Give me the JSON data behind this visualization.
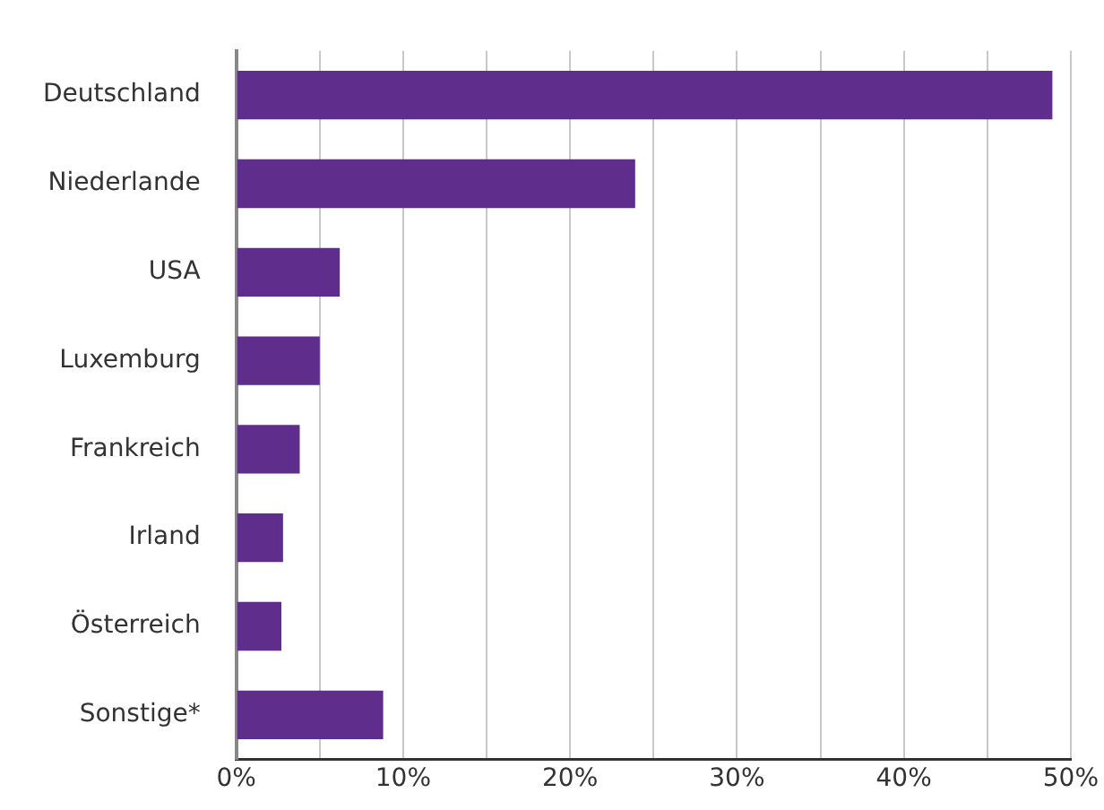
{
  "chart_data": {
    "type": "bar",
    "orientation": "horizontal",
    "categories": [
      "Deutschland",
      "Niederlande",
      "USA",
      "Luxemburg",
      "Frankreich",
      "Irland",
      "Österreich",
      "Sonstige*"
    ],
    "values": [
      48.9,
      23.9,
      6.2,
      5.0,
      3.8,
      2.8,
      2.7,
      8.8
    ],
    "color": "#5f2d8c",
    "xlim": [
      0,
      50
    ],
    "xticks": [
      {
        "value": 0,
        "label": "0%"
      },
      {
        "value": 5,
        "label": null
      },
      {
        "value": 10,
        "label": "10%"
      },
      {
        "value": 15,
        "label": null
      },
      {
        "value": 20,
        "label": "20%"
      },
      {
        "value": 25,
        "label": null
      },
      {
        "value": 30,
        "label": "30%"
      },
      {
        "value": 35,
        "label": null
      },
      {
        "value": 40,
        "label": "40%"
      },
      {
        "value": 45,
        "label": null
      },
      {
        "value": 50,
        "label": "50%"
      }
    ],
    "grid": "x",
    "legend": false
  }
}
